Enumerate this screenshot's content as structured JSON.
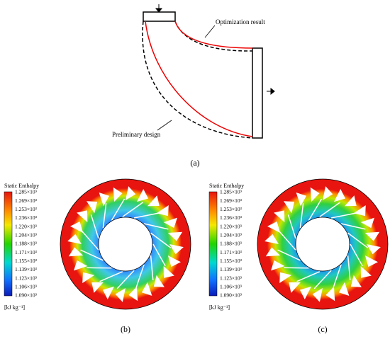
{
  "panel_a": {
    "labels": [
      "Optimization result",
      "Preliminary design"
    ],
    "caption": "(a)"
  },
  "panel_b": {
    "legend": {
      "title": "Static Enthalpy",
      "ticks": [
        "1.285×10³",
        "1.269×10³",
        "1.253×10³",
        "1.236×10³",
        "1.220×10³",
        "1.204×10³",
        "1.188×10³",
        "1.171×10³",
        "1.155×10³",
        "1.139×10³",
        "1.123×10³",
        "1.106×10³",
        "1.090×10³"
      ],
      "unit": "[kJ kg⁻¹]"
    },
    "caption": "(b)"
  },
  "panel_c": {
    "legend": {
      "title": "Static Enthalpy",
      "ticks": [
        "1.285×10³",
        "1.269×10³",
        "1.253×10³",
        "1.236×10³",
        "1.220×10³",
        "1.204×10³",
        "1.188×10³",
        "1.171×10³",
        "1.155×10³",
        "1.139×10³",
        "1.123×10³",
        "1.106×10³",
        "1.090×10³"
      ],
      "unit": "[kJ kg⁻¹]"
    },
    "caption": "(c)"
  }
}
